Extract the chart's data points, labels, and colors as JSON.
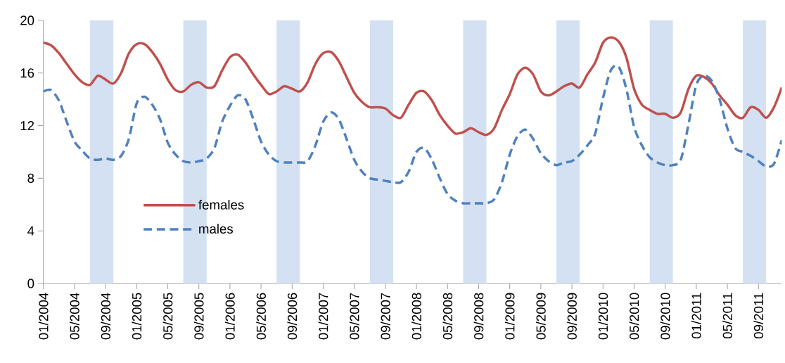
{
  "chart_data": {
    "type": "line",
    "x": [
      "2004-01",
      "2004-02",
      "2004-03",
      "2004-04",
      "2004-05",
      "2004-06",
      "2004-07",
      "2004-08",
      "2004-09",
      "2004-10",
      "2004-11",
      "2004-12",
      "2005-01",
      "2005-02",
      "2005-03",
      "2005-04",
      "2005-05",
      "2005-06",
      "2005-07",
      "2005-08",
      "2005-09",
      "2005-10",
      "2005-11",
      "2005-12",
      "2006-01",
      "2006-02",
      "2006-03",
      "2006-04",
      "2006-05",
      "2006-06",
      "2006-07",
      "2006-08",
      "2006-09",
      "2006-10",
      "2006-11",
      "2006-12",
      "2007-01",
      "2007-02",
      "2007-03",
      "2007-04",
      "2007-05",
      "2007-06",
      "2007-07",
      "2007-08",
      "2007-09",
      "2007-10",
      "2007-11",
      "2007-12",
      "2008-01",
      "2008-02",
      "2008-03",
      "2008-04",
      "2008-05",
      "2008-06",
      "2008-07",
      "2008-08",
      "2008-09",
      "2008-10",
      "2008-11",
      "2008-12",
      "2009-01",
      "2009-02",
      "2009-03",
      "2009-04",
      "2009-05",
      "2009-06",
      "2009-07",
      "2009-08",
      "2009-09",
      "2009-10",
      "2009-11",
      "2009-12",
      "2010-01",
      "2010-02",
      "2010-03",
      "2010-04",
      "2010-05",
      "2010-06",
      "2010-07",
      "2010-08",
      "2010-09",
      "2010-10",
      "2010-11",
      "2010-12",
      "2011-01",
      "2011-02",
      "2011-03",
      "2011-04",
      "2011-05",
      "2011-06",
      "2011-07",
      "2011-08",
      "2011-09",
      "2011-10",
      "2011-11",
      "2011-12"
    ],
    "series": [
      {
        "name": "females",
        "color": "#c0504d",
        "line_style": "solid",
        "values": [
          18.3,
          18.1,
          17.5,
          16.7,
          15.9,
          15.3,
          15.1,
          15.8,
          15.5,
          15.2,
          16.0,
          17.5,
          18.2,
          18.2,
          17.6,
          16.7,
          15.5,
          14.7,
          14.6,
          15.1,
          15.3,
          14.9,
          15.0,
          16.2,
          17.2,
          17.4,
          16.8,
          15.9,
          15.1,
          14.4,
          14.6,
          15.0,
          14.8,
          14.6,
          15.3,
          16.7,
          17.5,
          17.6,
          16.9,
          15.7,
          14.5,
          13.8,
          13.4,
          13.4,
          13.3,
          12.8,
          12.6,
          13.6,
          14.5,
          14.6,
          13.9,
          12.8,
          12.0,
          11.4,
          11.5,
          11.8,
          11.5,
          11.3,
          11.8,
          13.2,
          14.4,
          15.9,
          16.4,
          15.9,
          14.6,
          14.3,
          14.6,
          15.0,
          15.2,
          14.9,
          15.9,
          16.8,
          18.3,
          18.7,
          18.4,
          17.2,
          14.8,
          13.6,
          13.2,
          12.9,
          12.9,
          12.6,
          13.0,
          14.8,
          15.8,
          15.7,
          15.2,
          14.3,
          13.6,
          12.8,
          12.6,
          13.4,
          13.2,
          12.6,
          13.4,
          14.9
        ]
      },
      {
        "name": "males",
        "color": "#4f81bd",
        "line_style": "dashed",
        "values": [
          14.6,
          14.7,
          13.9,
          12.3,
          10.8,
          10.1,
          9.5,
          9.4,
          9.5,
          9.4,
          9.7,
          11.0,
          13.7,
          14.2,
          13.6,
          12.5,
          10.7,
          9.8,
          9.3,
          9.2,
          9.3,
          9.5,
          10.3,
          12.3,
          13.5,
          14.3,
          14.0,
          12.5,
          10.8,
          9.8,
          9.3,
          9.2,
          9.2,
          9.2,
          9.3,
          10.5,
          12.3,
          13.0,
          12.5,
          11.0,
          9.4,
          8.5,
          8.0,
          7.9,
          7.8,
          7.7,
          7.7,
          8.5,
          10.0,
          10.3,
          9.4,
          8.0,
          6.8,
          6.3,
          6.1,
          6.1,
          6.1,
          6.1,
          6.4,
          7.7,
          9.8,
          11.2,
          11.7,
          11.0,
          9.9,
          9.3,
          9.0,
          9.2,
          9.3,
          9.8,
          10.5,
          11.4,
          14.1,
          16.2,
          16.5,
          14.8,
          11.9,
          10.5,
          9.6,
          9.2,
          9.0,
          9.0,
          9.4,
          12.1,
          15.1,
          15.8,
          15.4,
          14.0,
          11.8,
          10.3,
          10.0,
          9.7,
          9.3,
          8.9,
          9.1,
          10.9
        ]
      }
    ],
    "xlim": [
      "2004-01",
      "2011-12"
    ],
    "xticks": [
      {
        "value": "2004-01",
        "label": "01/2004"
      },
      {
        "value": "2004-05",
        "label": "05/2004"
      },
      {
        "value": "2004-09",
        "label": "09/2004"
      },
      {
        "value": "2005-01",
        "label": "01/2005"
      },
      {
        "value": "2005-05",
        "label": "05/2005"
      },
      {
        "value": "2005-09",
        "label": "09/2005"
      },
      {
        "value": "2006-01",
        "label": "01/2006"
      },
      {
        "value": "2006-05",
        "label": "05/2006"
      },
      {
        "value": "2006-09",
        "label": "09/2006"
      },
      {
        "value": "2007-01",
        "label": "01/2007"
      },
      {
        "value": "2007-05",
        "label": "05/2007"
      },
      {
        "value": "2007-09",
        "label": "09/2007"
      },
      {
        "value": "2008-01",
        "label": "01/2008"
      },
      {
        "value": "2008-05",
        "label": "05/2008"
      },
      {
        "value": "2008-09",
        "label": "09/2008"
      },
      {
        "value": "2009-01",
        "label": "01/2009"
      },
      {
        "value": "2009-05",
        "label": "05/2009"
      },
      {
        "value": "2009-09",
        "label": "09/2009"
      },
      {
        "value": "2010-01",
        "label": "01/2010"
      },
      {
        "value": "2010-05",
        "label": "05/2010"
      },
      {
        "value": "2010-09",
        "label": "09/2010"
      },
      {
        "value": "2011-01",
        "label": "01/2011"
      },
      {
        "value": "2011-05",
        "label": "05/2011"
      },
      {
        "value": "2011-09",
        "label": "09/2011"
      }
    ],
    "ylim": [
      0,
      20
    ],
    "yticks": [
      0,
      4,
      8,
      12,
      16,
      20
    ],
    "bands": [
      {
        "axis": "x",
        "from": "2004-07",
        "to": "2004-10",
        "color": "#d3e1f3"
      },
      {
        "axis": "x",
        "from": "2005-07",
        "to": "2005-10",
        "color": "#d3e1f3"
      },
      {
        "axis": "x",
        "from": "2006-07",
        "to": "2006-10",
        "color": "#d3e1f3"
      },
      {
        "axis": "x",
        "from": "2007-07",
        "to": "2007-10",
        "color": "#d3e1f3"
      },
      {
        "axis": "x",
        "from": "2008-07",
        "to": "2008-10",
        "color": "#d3e1f3"
      },
      {
        "axis": "x",
        "from": "2009-07",
        "to": "2009-10",
        "color": "#d3e1f3"
      },
      {
        "axis": "x",
        "from": "2010-07",
        "to": "2010-10",
        "color": "#d3e1f3"
      },
      {
        "axis": "x",
        "from": "2011-07",
        "to": "2011-10",
        "color": "#d3e1f3"
      }
    ],
    "grid": false,
    "legend": "bottom left",
    "marker": "none"
  }
}
